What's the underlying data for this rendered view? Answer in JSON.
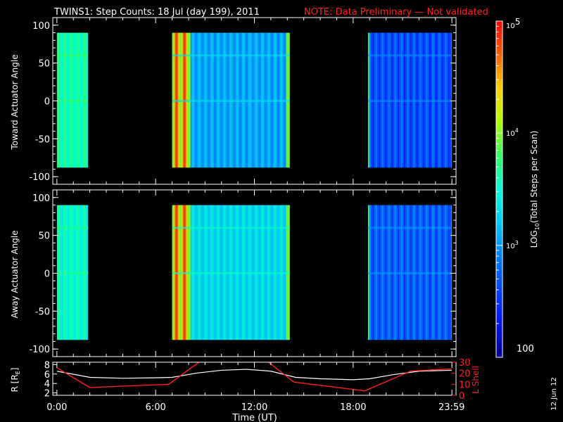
{
  "title": {
    "main": "TWINS1: Step Counts: 18 Jul (day 199), 2011",
    "note": "NOTE: Data Preliminary — Not validated"
  },
  "date_stamp": "12 Jun 12",
  "colors": {
    "note": "#ff2020",
    "background": "#000000",
    "axes": "#ffffff",
    "lshell": "#ff2020",
    "radius": "#ffffff"
  },
  "chart_data": [
    {
      "type": "heatmap",
      "ylabel": "Toward Actuator Angle",
      "yticks": [
        "100",
        "50",
        "0",
        "-50",
        "-100"
      ],
      "ylim": [
        -110,
        110
      ],
      "xlim": [
        -0.25,
        24.25
      ],
      "data_y_range": [
        -88,
        90
      ],
      "blocks": [
        {
          "x0": 0.0,
          "x1": 1.9,
          "level": 0.48
        },
        {
          "x0": 7.0,
          "x1": 14.15,
          "level": 0.3
        },
        {
          "x0": 18.9,
          "x1": 23.99,
          "level": 0.18
        }
      ]
    },
    {
      "type": "heatmap",
      "ylabel": "Away Actuator Angle",
      "yticks": [
        "100",
        "50",
        "0",
        "-50",
        "-100"
      ],
      "ylim": [
        -110,
        110
      ],
      "xlim": [
        -0.25,
        24.25
      ],
      "data_y_range": [
        -88,
        90
      ],
      "blocks": [
        {
          "x0": 0.0,
          "x1": 1.9,
          "level": 0.45
        },
        {
          "x0": 7.0,
          "x1": 14.15,
          "level": 0.38
        },
        {
          "x0": 18.9,
          "x1": 23.99,
          "level": 0.2
        }
      ]
    },
    {
      "type": "line",
      "ylabel_left": "R [R",
      "ylabel_left_sub": "E",
      "ylabel_left_end": "]",
      "ylabel_right": "L Shell",
      "left_yticks": [
        "8",
        "6",
        "4",
        "2"
      ],
      "right_yticks": [
        "30",
        "20",
        "10",
        "0"
      ],
      "ylim_left": [
        1.5,
        8.5
      ],
      "ylim_right": [
        0,
        30
      ],
      "xlim": [
        -0.25,
        24.25
      ],
      "xticks": [
        "0:00",
        "6:00",
        "12:00",
        "18:00",
        "23:59"
      ],
      "xtick_values": [
        0,
        6,
        12,
        18,
        23.98
      ],
      "xlabel": "Time (UT)",
      "series": [
        {
          "id": "radius",
          "x": [
            0,
            2,
            4,
            6,
            7,
            8.5,
            10,
            11.5,
            13,
            14.5,
            16,
            18,
            19,
            20.5,
            22,
            23.99
          ],
          "y": [
            6.6,
            5.3,
            5.1,
            5.2,
            5.3,
            6.2,
            6.8,
            7.0,
            6.6,
            5.3,
            5.0,
            4.8,
            5.0,
            5.9,
            6.6,
            6.8
          ]
        },
        {
          "id": "lshell",
          "x": [
            0,
            2,
            6.8,
            8.9,
            12.6,
            14.4,
            18.7,
            21.5,
            23.99
          ],
          "y": [
            25,
            7,
            10,
            33,
            33,
            12,
            4,
            22,
            24
          ]
        }
      ]
    }
  ],
  "colorbar": {
    "label_pre": "LOG",
    "label_sub": "10",
    "label_post": "(Total Steps per Scan)",
    "ticks": [
      {
        "base": "10",
        "exp": "5",
        "frac": 1.0
      },
      {
        "base": "10",
        "exp": "4",
        "frac": 0.667
      },
      {
        "base": "10",
        "exp": "3",
        "frac": 0.333
      }
    ],
    "bottom_label": "100",
    "scale": "log"
  }
}
